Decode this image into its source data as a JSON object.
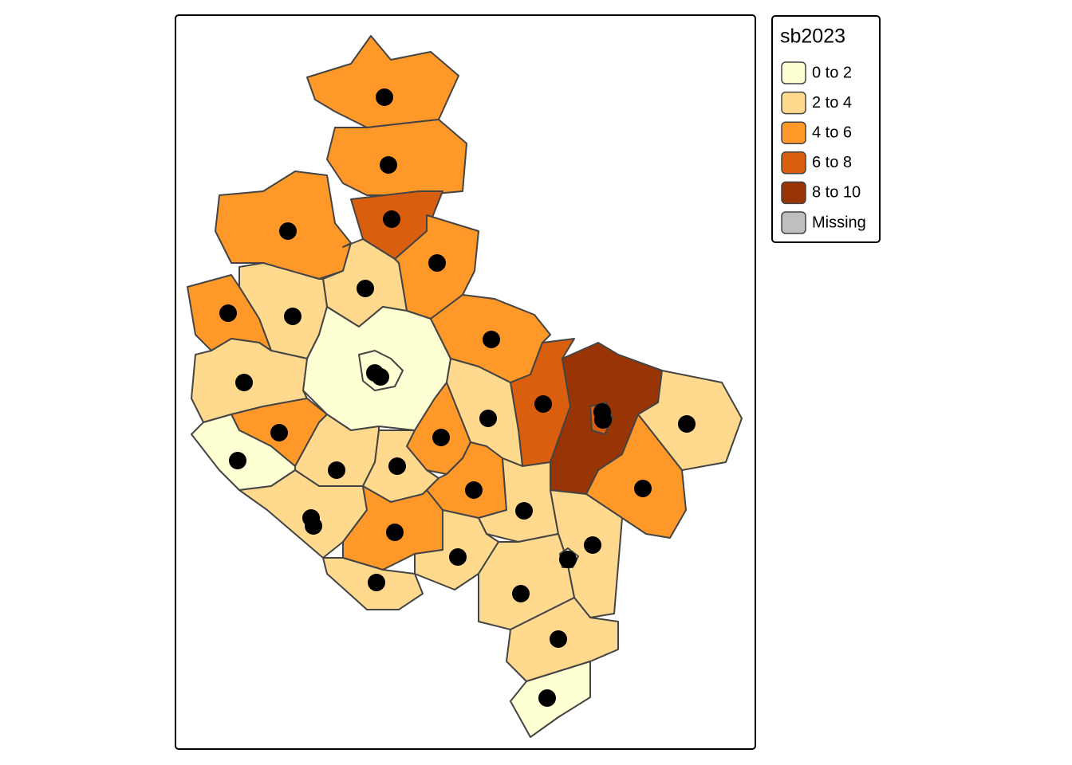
{
  "legend": {
    "title": "sb2023",
    "items": [
      {
        "label": "0 to 2",
        "color": "#FFFFD4"
      },
      {
        "label": "2 to 4",
        "color": "#FED98E"
      },
      {
        "label": "4 to 6",
        "color": "#FE9929"
      },
      {
        "label": "6 to 8",
        "color": "#D95F0E"
      },
      {
        "label": "8 to 10",
        "color": "#993404"
      },
      {
        "label": "Missing",
        "color": "#BFBFBF"
      }
    ]
  }
}
